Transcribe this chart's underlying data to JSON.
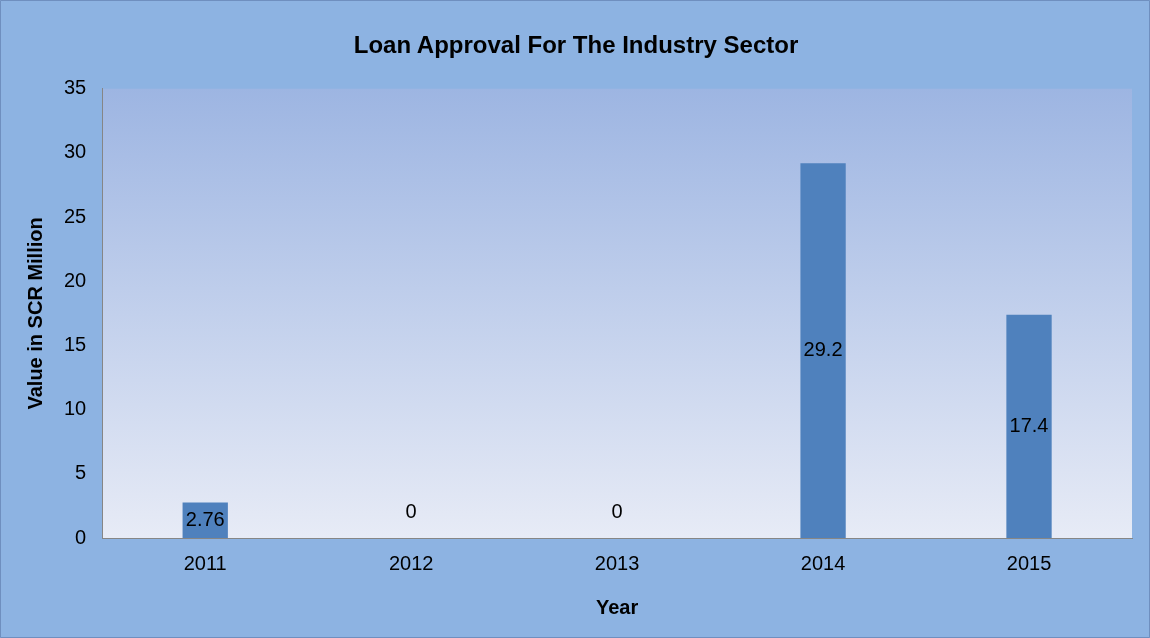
{
  "chart_data": {
    "type": "bar",
    "title": "Loan Approval For The Industry Sector",
    "xlabel": "Year",
    "ylabel": "Value in SCR Million",
    "categories": [
      "2011",
      "2012",
      "2013",
      "2014",
      "2015"
    ],
    "values": [
      2.76,
      0,
      0,
      29.2,
      17.4
    ],
    "color": "#4f81bd",
    "ylim": [
      0,
      35
    ],
    "yticks": [
      0,
      5,
      10,
      15,
      20,
      25,
      30,
      35
    ],
    "grid": false,
    "data_labels": true,
    "legend": false
  }
}
